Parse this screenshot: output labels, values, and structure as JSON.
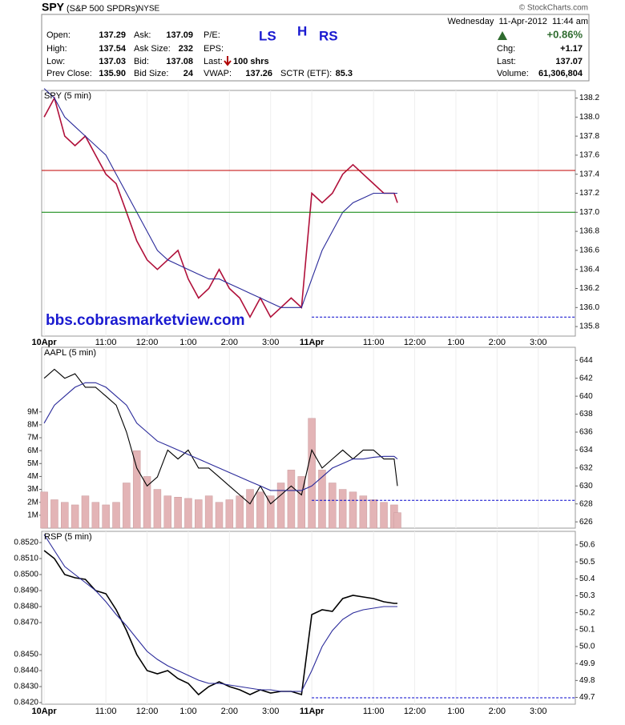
{
  "header": {
    "symbol": "SPY",
    "name": "(S&P 500 SPDRs)",
    "exchange": "NYSE",
    "copyright": "© StockCharts.com",
    "timestamp": "Wednesday  11-Apr-2012  11:44 am",
    "change_pct": "+0.86%",
    "open_label": "Open:",
    "open": "137.29",
    "high_label": "High:",
    "high": "137.54",
    "low_label": "Low:",
    "low": "137.03",
    "prev_label": "Prev Close:",
    "prev": "135.90",
    "ask_label": "Ask:",
    "ask": "137.09",
    "asksize_label": "Ask Size:",
    "asksize": "232",
    "bid_label": "Bid:",
    "bid": "137.08",
    "bidsize_label": "Bid Size:",
    "bidsize": "24",
    "pe_label": "P/E:",
    "eps_label": "EPS:",
    "last_trade_label": "Last:",
    "last_trade": "100 shrs",
    "vwap_label": "VWAP:",
    "vwap": "137.26",
    "sctr_label": "SCTR (ETF):",
    "sctr": "85.3",
    "chg_label": "Chg:",
    "chg": "+1.17",
    "last_label": "Last:",
    "last": "137.07",
    "volume_label": "Volume:",
    "volume": "61,306,804"
  },
  "annotations": [
    "LS",
    "H",
    "RS",
    "bbs.cobrasmarketview.com"
  ],
  "chart_data": [
    {
      "type": "line",
      "title": "SPY (5 min)",
      "y_side": "right",
      "x": [
        0,
        0.25,
        0.5,
        0.75,
        1,
        1.25,
        1.5,
        1.75,
        2,
        2.25,
        2.5,
        2.75,
        3,
        3.25,
        3.5,
        3.75,
        4,
        4.25,
        4.5,
        4.75,
        5,
        5.25,
        5.5,
        5.75,
        6,
        6.25,
        6.5,
        6.75,
        7,
        7.25,
        7.5,
        7.75,
        8,
        8.25,
        8.5,
        8.58
      ],
      "xlim": [
        -0.06,
        12.9
      ],
      "xticks": [
        {
          "value": 0,
          "label": "10Apr"
        },
        {
          "value": 1.5,
          "label": "11:00"
        },
        {
          "value": 2.5,
          "label": "12:00"
        },
        {
          "value": 3.5,
          "label": "1:00"
        },
        {
          "value": 4.5,
          "label": "2:00"
        },
        {
          "value": 5.5,
          "label": "3:00"
        },
        {
          "value": 6.5,
          "label": "11Apr"
        },
        {
          "value": 8,
          "label": "11:00"
        },
        {
          "value": 9,
          "label": "12:00"
        },
        {
          "value": 10,
          "label": "1:00"
        },
        {
          "value": 11,
          "label": "2:00"
        },
        {
          "value": 12,
          "label": "3:00"
        }
      ],
      "ylim": [
        135.7,
        138.28
      ],
      "yticks": [
        135.8,
        {
          "value": 136,
          "label": "136.0"
        },
        136.2,
        136.4,
        136.6,
        136.8,
        {
          "value": 137,
          "label": "137.0"
        },
        137.2,
        137.4,
        137.6,
        137.8,
        {
          "value": 138,
          "label": "138.0"
        },
        138.2
      ],
      "series": [
        {
          "color": "#b0103a",
          "values": [
            138.0,
            138.2,
            137.8,
            137.7,
            137.8,
            137.6,
            137.4,
            137.3,
            137.0,
            136.7,
            136.5,
            136.4,
            136.5,
            136.6,
            136.3,
            136.1,
            136.2,
            136.4,
            136.2,
            136.1,
            135.9,
            136.1,
            135.9,
            136.0,
            136.1,
            136.0,
            137.2,
            137.1,
            137.2,
            137.4,
            137.5,
            137.4,
            137.3,
            137.2,
            137.2,
            137.1
          ]
        },
        {
          "color": "#2a2a9a",
          "values": [
            138.3,
            138.2,
            138.0,
            137.9,
            137.8,
            137.7,
            137.6,
            137.4,
            137.2,
            137.0,
            136.8,
            136.6,
            136.5,
            136.45,
            136.4,
            136.35,
            136.3,
            136.3,
            136.25,
            136.2,
            136.15,
            136.1,
            136.05,
            136.0,
            136.0,
            136.0,
            136.3,
            136.6,
            136.8,
            137.0,
            137.1,
            137.15,
            137.2,
            137.2,
            137.2,
            137.2
          ]
        }
      ],
      "reference_lines": [
        {
          "value": 137.44,
          "color": "#c00000"
        },
        {
          "value": 137.0,
          "color": "#008000"
        },
        {
          "value": 135.9,
          "color": "#0000cc",
          "dashed": true,
          "from": 6.5
        }
      ]
    },
    {
      "type": "line",
      "title": "AAPL (5 min)",
      "y_side": "right",
      "x": [
        0,
        0.25,
        0.5,
        0.75,
        1,
        1.25,
        1.5,
        1.75,
        2,
        2.25,
        2.5,
        2.75,
        3,
        3.25,
        3.5,
        3.75,
        4,
        4.25,
        4.5,
        4.75,
        5,
        5.25,
        5.5,
        5.75,
        6,
        6.25,
        6.5,
        6.75,
        7,
        7.25,
        7.5,
        7.75,
        8,
        8.25,
        8.5,
        8.58
      ],
      "xlim": [
        -0.06,
        12.9
      ],
      "xticks": [
        {
          "value": 0,
          "label": "10Apr"
        },
        {
          "value": 1.5,
          "label": "11:00"
        },
        {
          "value": 2.5,
          "label": "12:00"
        },
        {
          "value": 3.5,
          "label": "1:00"
        },
        {
          "value": 4.5,
          "label": "2:00"
        },
        {
          "value": 5.5,
          "label": "3:00"
        },
        {
          "value": 6.5,
          "label": "11Apr"
        },
        {
          "value": 8,
          "label": "11:00"
        },
        {
          "value": 9,
          "label": "12:00"
        },
        {
          "value": 10,
          "label": "1:00"
        },
        {
          "value": 11,
          "label": "2:00"
        },
        {
          "value": 12,
          "label": "3:00"
        }
      ],
      "ylim": [
        625.3,
        645.45
      ],
      "yticks": [
        626,
        628,
        630,
        632,
        634,
        636,
        638,
        640,
        642,
        644
      ],
      "y2lim": [
        0,
        14000000
      ],
      "y2ticks": [
        {
          "value": 1000000,
          "label": "1M"
        },
        {
          "value": 2000000,
          "label": "2M"
        },
        {
          "value": 3000000,
          "label": "3M"
        },
        {
          "value": 4000000,
          "label": "4M"
        },
        {
          "value": 5000000,
          "label": "5M"
        },
        {
          "value": 6000000,
          "label": "6M"
        },
        {
          "value": 7000000,
          "label": "7M"
        },
        {
          "value": 8000000,
          "label": "8M"
        },
        {
          "value": 9000000,
          "label": "9M"
        }
      ],
      "series": [
        {
          "type": "bar",
          "axis": "y2",
          "color": "#e3b4b6",
          "values": [
            2800000,
            2200000,
            2000000,
            1800000,
            2500000,
            2000000,
            1800000,
            2000000,
            3500000,
            6000000,
            4000000,
            3000000,
            2500000,
            2400000,
            2300000,
            2200000,
            2500000,
            2000000,
            2200000,
            2500000,
            3000000,
            2800000,
            2500000,
            3500000,
            4500000,
            4000000,
            8500000,
            4500000,
            3500000,
            3000000,
            2800000,
            2500000,
            2200000,
            2000000,
            1800000,
            1200000
          ]
        },
        {
          "color": "#000000",
          "values": [
            642,
            643,
            642,
            642.5,
            641,
            641,
            640,
            639,
            636,
            632,
            630,
            631,
            634,
            633,
            634,
            632,
            632,
            631,
            630,
            629,
            628,
            630,
            628,
            629,
            630,
            629,
            634,
            632,
            633,
            634,
            633,
            634,
            634,
            633,
            633,
            630
          ]
        },
        {
          "color": "#2a2a9a",
          "values": [
            637,
            639,
            640,
            641,
            641.5,
            641.5,
            641,
            640,
            639,
            637,
            636,
            635,
            634.5,
            634,
            633.5,
            633,
            632.5,
            632,
            631.5,
            631,
            630.5,
            630,
            629.5,
            629.5,
            629.5,
            629.5,
            630,
            631,
            632,
            632.5,
            633,
            633,
            633.2,
            633.3,
            633.3,
            633
          ]
        }
      ],
      "reference_lines": [
        {
          "value": 628.4,
          "color": "#0000cc",
          "dashed": true,
          "from": 6.5
        }
      ]
    },
    {
      "type": "line",
      "title": "RSP (5 min)",
      "y_side": "left",
      "x": [
        0,
        0.25,
        0.5,
        0.75,
        1,
        1.25,
        1.5,
        1.75,
        2,
        2.25,
        2.5,
        2.75,
        3,
        3.25,
        3.5,
        3.75,
        4,
        4.25,
        4.5,
        4.75,
        5,
        5.25,
        5.5,
        5.75,
        6,
        6.25,
        6.5,
        6.75,
        7,
        7.25,
        7.5,
        7.75,
        8,
        8.25,
        8.5,
        8.58
      ],
      "xlim": [
        -0.06,
        12.9
      ],
      "xticks": [
        {
          "value": 0,
          "label": "10Apr"
        },
        {
          "value": 1.5,
          "label": "11:00"
        },
        {
          "value": 2.5,
          "label": "12:00"
        },
        {
          "value": 3.5,
          "label": "1:00"
        },
        {
          "value": 4.5,
          "label": "2:00"
        },
        {
          "value": 5.5,
          "label": "3:00"
        },
        {
          "value": 6.5,
          "label": "11Apr"
        },
        {
          "value": 8,
          "label": "11:00"
        },
        {
          "value": 9,
          "label": "12:00"
        },
        {
          "value": 10,
          "label": "1:00"
        },
        {
          "value": 11,
          "label": "2:00"
        },
        {
          "value": 12,
          "label": "3:00"
        }
      ],
      "ylim": [
        0.8419,
        0.8527
      ],
      "yticks": [
        {
          "value": 0.842,
          "label": "0.8420"
        },
        {
          "value": 0.843,
          "label": "0.8430"
        },
        {
          "value": 0.844,
          "label": "0.8440"
        },
        {
          "value": 0.845,
          "label": "0.8450"
        },
        {
          "value": 0.847,
          "label": "0.8470"
        },
        {
          "value": 0.848,
          "label": "0.8480"
        },
        {
          "value": 0.849,
          "label": "0.8490"
        },
        {
          "value": 0.85,
          "label": "0.8500"
        },
        {
          "value": 0.851,
          "label": "0.8510"
        },
        {
          "value": 0.852,
          "label": "0.8520"
        }
      ],
      "y2lim": [
        49.66,
        50.68
      ],
      "y2ticks": [
        49.7,
        49.8,
        49.9,
        {
          "value": 50,
          "label": "50.0"
        },
        50.1,
        50.2,
        50.3,
        50.4,
        50.5,
        50.6
      ],
      "series": [
        {
          "color": "#000000",
          "values": [
            0.8515,
            0.851,
            0.85,
            0.8498,
            0.8497,
            0.849,
            0.8488,
            0.8478,
            0.8465,
            0.845,
            0.844,
            0.8438,
            0.844,
            0.8435,
            0.8432,
            0.8425,
            0.843,
            0.8433,
            0.843,
            0.8428,
            0.8425,
            0.8428,
            0.8426,
            0.8427,
            0.8427,
            0.8425,
            0.8475,
            0.8478,
            0.8477,
            0.8485,
            0.8487,
            0.8486,
            0.8485,
            0.8483,
            0.8482,
            0.8482
          ]
        },
        {
          "color": "#2a2a9a",
          "values": [
            0.8525,
            0.8515,
            0.8505,
            0.85,
            0.8495,
            0.849,
            0.8483,
            0.8475,
            0.8468,
            0.846,
            0.8452,
            0.8447,
            0.8443,
            0.844,
            0.8437,
            0.8434,
            0.8432,
            0.8432,
            0.8431,
            0.843,
            0.8429,
            0.8428,
            0.8428,
            0.8427,
            0.8427,
            0.8427,
            0.844,
            0.8455,
            0.8465,
            0.8472,
            0.8476,
            0.8478,
            0.8479,
            0.848,
            0.848,
            0.848
          ]
        }
      ],
      "reference_lines": [
        {
          "value": 0.8423,
          "color": "#0000cc",
          "dashed": true,
          "from": 6.5
        }
      ]
    }
  ]
}
